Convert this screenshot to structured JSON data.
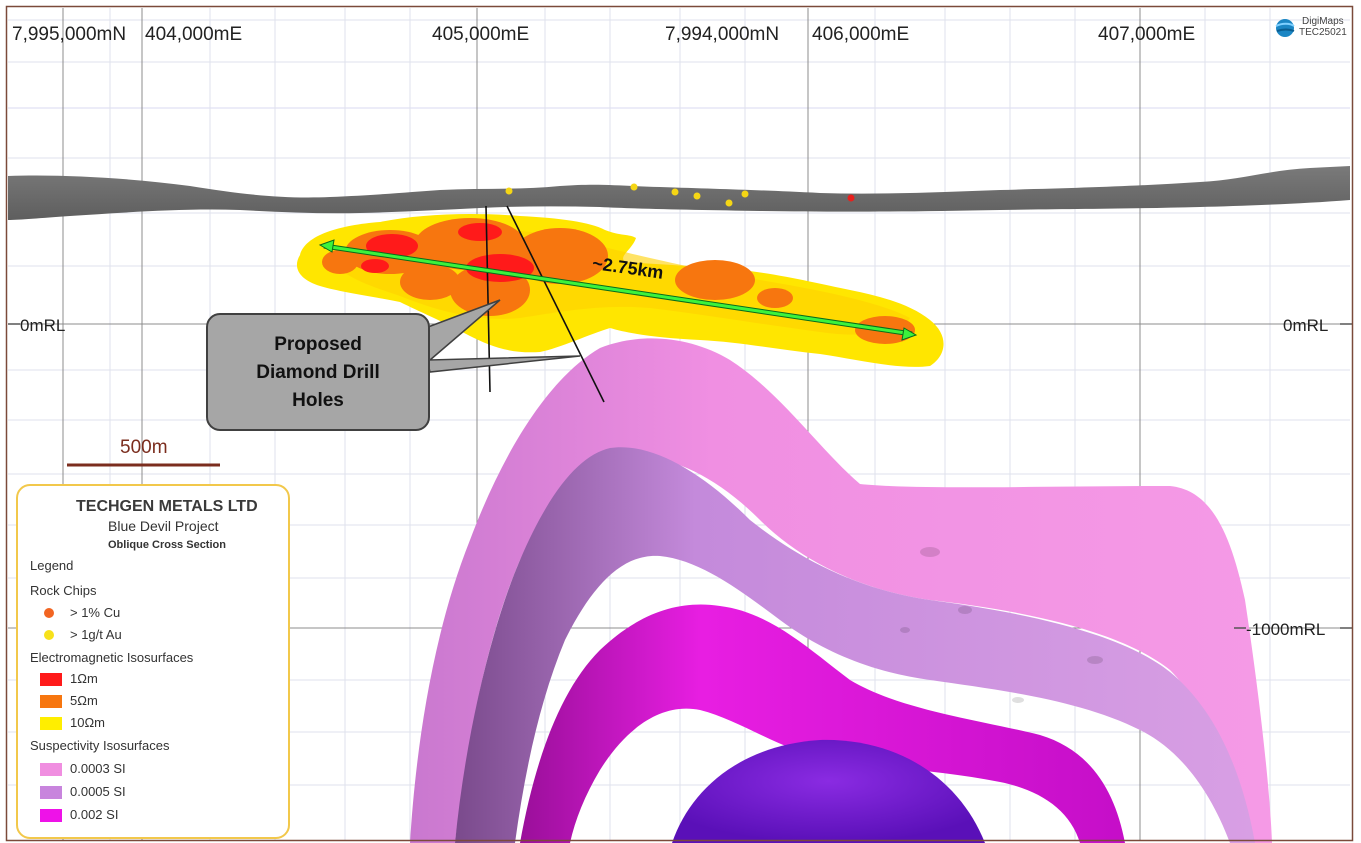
{
  "coords": {
    "north_left": "7,995,000mN",
    "east_404": "404,000mE",
    "east_405": "405,000mE",
    "north_mid": "7,994,000mN",
    "east_406": "406,000mE",
    "east_407": "407,000mE"
  },
  "rl": {
    "zero_left": "0mRL",
    "zero_right": "0mRL",
    "minus1000": "-1000mRL"
  },
  "brand": {
    "name": "DigiMaps",
    "code": "TEC25021"
  },
  "scale_bar": {
    "label": "500m"
  },
  "distance_label": "~2.75km",
  "callout": {
    "line1": "Proposed",
    "line2": "Diamond Drill",
    "line3": "Holes"
  },
  "legend": {
    "company": "TECHGEN METALS LTD",
    "project": "Blue Devil Project",
    "section": "Oblique Cross Section",
    "title": "Legend",
    "rock_chips": {
      "heading": "Rock Chips",
      "items": [
        {
          "label": "> 1% Cu",
          "color": "#f26522"
        },
        {
          "label": "> 1g/t Au",
          "color": "#f7e11b"
        }
      ]
    },
    "em": {
      "heading": "Electromagnetic Isosurfaces",
      "items": [
        {
          "label": "1Ωm",
          "color": "#ff1a1a"
        },
        {
          "label": "5Ωm",
          "color": "#f7760f"
        },
        {
          "label": "10Ωm",
          "color": "#ffee00"
        }
      ]
    },
    "susc": {
      "heading": "Suspectivity Isosurfaces",
      "items": [
        {
          "label": "0.0003 SI",
          "color": "#f08ee0"
        },
        {
          "label": "0.0005 SI",
          "color": "#c884dd"
        },
        {
          "label": "0.002 SI",
          "color": "#ee12e8"
        }
      ]
    }
  }
}
